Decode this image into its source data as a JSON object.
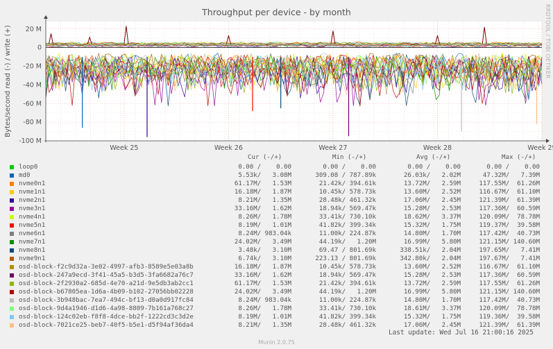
{
  "title": "Throughput per device - by month",
  "side_text": "RRDTOOL / TOBI OETIKER",
  "munin_version": "Munin 2.0.75",
  "last_update": "Last update: Wed Jul 16 21:00:16 2025",
  "legend_headers": {
    "cur": "Cur (-/+)",
    "min": "Min (-/+)",
    "avg": "Avg (-/+)",
    "max": "Max (-/+)"
  },
  "legend": [
    {
      "name": "loop0",
      "color": "#00cc00",
      "cur": "0.00 /    0.00",
      "min": "0.00 /    0.00",
      "avg": "0.00 /    0.00",
      "max": "0.00 /    0.00"
    },
    {
      "name": "md0",
      "color": "#0066b3",
      "cur": "5.53k/   3.08M",
      "min": "309.08 / 787.89k",
      "avg": "26.03k/   2.02M",
      "max": "47.32M/   7.39M"
    },
    {
      "name": "nvme0n1",
      "color": "#ff8000",
      "cur": "61.17M/   1.53M",
      "min": "21.42k/ 394.61k",
      "avg": "13.72M/   2.59M",
      "max": "117.55M/  61.26M"
    },
    {
      "name": "nvme1n1",
      "color": "#ffcc00",
      "cur": "16.18M/   1.87M",
      "min": "10.45k/ 578.73k",
      "avg": "13.60M/   2.52M",
      "max": "116.67M/  61.10M"
    },
    {
      "name": "nvme2n1",
      "color": "#330099",
      "cur": "8.21M/   1.35M",
      "min": "28.48k/ 461.32k",
      "avg": "17.06M/   2.45M",
      "max": "121.39M/  61.39M"
    },
    {
      "name": "nvme3n1",
      "color": "#990099",
      "cur": "33.16M/   1.62M",
      "min": "18.94k/ 569.47k",
      "avg": "15.28M/   2.53M",
      "max": "117.36M/  60.59M"
    },
    {
      "name": "nvme4n1",
      "color": "#ccff00",
      "cur": "8.26M/   1.78M",
      "min": "33.41k/ 730.10k",
      "avg": "18.62M/   3.37M",
      "max": "120.09M/  78.78M"
    },
    {
      "name": "nvme5n1",
      "color": "#ff0000",
      "cur": "8.19M/   1.01M",
      "min": "41.82k/ 399.34k",
      "avg": "15.32M/   1.75M",
      "max": "119.37M/  39.58M"
    },
    {
      "name": "nvme6n1",
      "color": "#808080",
      "cur": "8.24M/ 983.04k",
      "min": "11.00k/ 224.87k",
      "avg": "14.80M/   1.70M",
      "max": "117.42M/  40.73M"
    },
    {
      "name": "nvme7n1",
      "color": "#008f00",
      "cur": "24.02M/   3.49M",
      "min": "44.19k/   1.20M",
      "avg": "16.99M/   5.80M",
      "max": "121.15M/ 140.60M"
    },
    {
      "name": "nvme8n1",
      "color": "#00487d",
      "cur": "3.48k/   3.10M",
      "min": "69.47 / 801.69k",
      "avg": "338.51k/   2.04M",
      "max": "197.65M/   7.41M"
    },
    {
      "name": "nvme9n1",
      "color": "#b35a00",
      "cur": "6.74k/   3.10M",
      "min": "223.13 / 801.69k",
      "avg": "342.80k/   2.04M",
      "max": "197.67M/   7.41M"
    },
    {
      "name": "osd-block-f2c9d32a-3e02-4997-afb3-8589e5e03a8b",
      "color": "#b38f00",
      "cur": "16.18M/   1.87M",
      "min": "10.45k/ 578.73k",
      "avg": "13.60M/   2.52M",
      "max": "116.67M/  61.10M"
    },
    {
      "name": "osd-block-247a9ecd-3f41-45a5-b3d5-3fa6682a76c7",
      "color": "#6b006b",
      "cur": "33.16M/   1.62M",
      "min": "18.94k/ 569.47k",
      "avg": "15.28M/   2.53M",
      "max": "117.36M/  60.59M"
    },
    {
      "name": "osd-block-2f2930a2-685d-4e70-a21d-9e5db3ab2cc1",
      "color": "#8fb300",
      "cur": "61.17M/   1.53M",
      "min": "21.42k/ 394.61k",
      "avg": "13.72M/   2.59M",
      "max": "117.55M/  61.26M"
    },
    {
      "name": "osd-block-b67805ea-1d6a-4b09-b102-27056bb02228",
      "color": "#b30000",
      "cur": "24.02M/   3.49M",
      "min": "44.19k/   1.20M",
      "avg": "16.99M/   5.80M",
      "max": "121.15M/ 140.60M"
    },
    {
      "name": "osd-block-3b948bac-7ea7-494c-bf13-d0a0d917fc84",
      "color": "#bebebe",
      "cur": "8.24M/ 983.04k",
      "min": "11.00k/ 224.87k",
      "avg": "14.80M/   1.70M",
      "max": "117.42M/  40.73M"
    },
    {
      "name": "osd-block-9d4a1946-d1d6-4a98-8809-7b161a768c27",
      "color": "#80ff80",
      "cur": "8.26M/   1.78M",
      "min": "33.41k/ 730.10k",
      "avg": "18.61M/   3.37M",
      "max": "120.09M/  78.78M"
    },
    {
      "name": "osd-block-124c02eb-f8f8-4dce-bb2f-1222cd3c3d2e",
      "color": "#80c9ff",
      "cur": "8.19M/   1.01M",
      "min": "41.82k/ 399.34k",
      "avg": "15.32M/   1.75M",
      "max": "119.36M/  39.58M"
    },
    {
      "name": "osd-block-7021ce25-beb7-40f5-b5e1-d5f94af36da4",
      "color": "#ffc080",
      "cur": "8.21M/   1.35M",
      "min": "28.48k/ 461.32k",
      "avg": "17.06M/   2.45M",
      "max": "121.39M/  61.39M"
    }
  ],
  "chart_data": {
    "type": "area",
    "title": "Throughput per device - by month",
    "ylabel": "Bytes/second read (-) / write (+)",
    "xlabel": "",
    "ylim": [
      -100,
      28
    ],
    "y_unit": "M",
    "y_ticks": [
      "20 M",
      "0",
      "-20 M",
      "-40 M",
      "-60 M",
      "-80 M",
      "-100 M"
    ],
    "y_tick_values": [
      20,
      0,
      -20,
      -40,
      -60,
      -80,
      -100
    ],
    "x_ticks": [
      "Week 25",
      "Week 26",
      "Week 27",
      "Week 28",
      "Week 29"
    ],
    "x_range_weeks": [
      24.25,
      29.0
    ],
    "grid": true,
    "series_summary": "Many overlapping block devices; reads (negative) mostly between -10M and -60M with spikes to about -96M; writes (positive) mostly 0 to 5M with spikes to about 23M",
    "write_spikes": [
      {
        "week": 24.3,
        "value": 15
      },
      {
        "week": 24.67,
        "value": 11
      },
      {
        "week": 25.02,
        "value": 23
      },
      {
        "week": 26.0,
        "value": 13
      },
      {
        "week": 27.0,
        "value": 18
      },
      {
        "week": 28.0,
        "value": 13
      },
      {
        "week": 28.45,
        "value": 22
      }
    ],
    "read_spikes": [
      {
        "week": 24.6,
        "value": -86
      },
      {
        "week": 25.22,
        "value": -96
      },
      {
        "week": 26.23,
        "value": -68
      },
      {
        "week": 26.5,
        "value": -65
      },
      {
        "week": 27.15,
        "value": -95
      },
      {
        "week": 28.23,
        "value": -90
      },
      {
        "week": 28.95,
        "value": -82
      }
    ]
  }
}
